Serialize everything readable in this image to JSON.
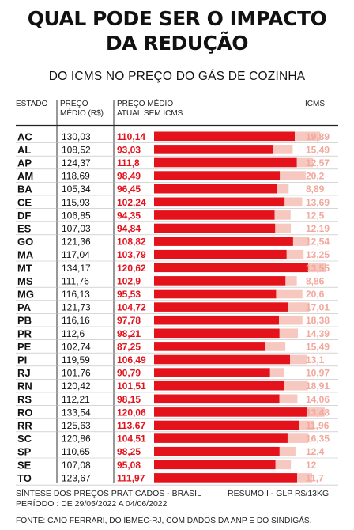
{
  "title_line1": "QUAL PODE SER O IMPACTO",
  "title_line2": "DA REDUÇÃO",
  "subtitle": "DO ICMS NO PREÇO DO GÁS DE COZINHA",
  "headers": {
    "estado": "ESTADO",
    "preco_medio_1": "PREÇO",
    "preco_medio_2": "MÉDIO (R$)",
    "sem_icms_1": "PREÇO MÉDIO",
    "sem_icms_2": "ATUAL SEM ICMS",
    "icms": "ICMS"
  },
  "colors": {
    "bar": "#e3121b",
    "icms_bar": "#f6c8c0",
    "icms_text": "#f2a89c",
    "value_text": "#e3121b"
  },
  "chart_data": {
    "type": "bar",
    "orientation": "horizontal",
    "stacked": true,
    "categories": [
      "AC",
      "AL",
      "AP",
      "AM",
      "BA",
      "CE",
      "DF",
      "ES",
      "GO",
      "MA",
      "MT",
      "MS",
      "MG",
      "PA",
      "PB",
      "PR",
      "PE",
      "PI",
      "RJ",
      "RN",
      "RS",
      "RO",
      "RR",
      "SC",
      "SP",
      "SE",
      "TO"
    ],
    "preco_medio": [
      "130,03",
      "108,52",
      "124,37",
      "118,69",
      "105,34",
      "115,93",
      "106,85",
      "107,03",
      "121,36",
      "117,04",
      "134,17",
      "111,76",
      "116,13",
      "121,73",
      "116,16",
      "112,6",
      "102,74",
      "119,59",
      "101,76",
      "120,42",
      "112,21",
      "133,54",
      "125,63",
      "120,86",
      "110,65",
      "107,08",
      "123,67"
    ],
    "sem_icms_labels": [
      "110,14",
      "93,03",
      "111,8",
      "98,49",
      "96,45",
      "102,24",
      "94,35",
      "94,84",
      "108,82",
      "103,79",
      "120,62",
      "102,9",
      "95,53",
      "104,72",
      "97,78",
      "98,21",
      "87,25",
      "106,49",
      "90,79",
      "101,51",
      "98,15",
      "120,06",
      "113,67",
      "104,51",
      "98,25",
      "95,08",
      "111,97"
    ],
    "icms_labels": [
      "19,89",
      "15,49",
      "12,57",
      "20,2",
      "8,89",
      "13,69",
      "12,5",
      "12,19",
      "12,54",
      "13,25",
      "13,55",
      "8,86",
      "20,6",
      "17,01",
      "18,38",
      "14,39",
      "15,49",
      "13,1",
      "10,97",
      "18,91",
      "14,06",
      "13,48",
      "11,96",
      "16,35",
      "12,4",
      "12",
      "11,7"
    ],
    "series": [
      {
        "name": "PREÇO MÉDIO ATUAL SEM ICMS",
        "values": [
          110.14,
          93.03,
          111.8,
          98.49,
          96.45,
          102.24,
          94.35,
          94.84,
          108.82,
          103.79,
          120.62,
          102.9,
          95.53,
          104.72,
          97.78,
          98.21,
          87.25,
          106.49,
          90.79,
          101.51,
          98.15,
          120.06,
          113.67,
          104.51,
          98.25,
          95.08,
          111.97
        ]
      },
      {
        "name": "ICMS",
        "values": [
          19.89,
          15.49,
          12.57,
          20.2,
          8.89,
          13.69,
          12.5,
          12.19,
          12.54,
          13.25,
          13.55,
          8.86,
          20.6,
          17.01,
          18.38,
          14.39,
          15.49,
          13.1,
          10.97,
          18.91,
          14.06,
          13.48,
          11.96,
          16.35,
          12.4,
          12,
          11.7
        ]
      }
    ],
    "xlim": [
      0,
      135
    ]
  },
  "footer": {
    "sintese": "SÍNTESE DOS PREÇOS PRATICADOS - BRASIL",
    "resumo": "RESUMO I - GLP R$/13KG",
    "periodo": "PERÍODO : DE 29/05/2022 A 04/06/2022",
    "fonte": "FONTE: CAIO FERRARI, DO IBMEC-RJ, COM DADOS DA ANP E DO SINDIGÁS."
  }
}
